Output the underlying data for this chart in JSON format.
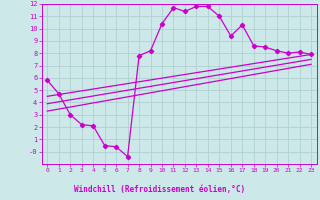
{
  "bg_color": "#cce8e8",
  "grid_color": "#b0d0d0",
  "line_color": "#cc00cc",
  "spine_color": "#cc00cc",
  "xlabel": "Windchill (Refroidissement éolien,°C)",
  "xlabel_bg": "#9900aa",
  "xlabel_fg": "#cc00cc",
  "xlim": [
    -0.5,
    23.5
  ],
  "ylim": [
    -1,
    12
  ],
  "xticks": [
    0,
    1,
    2,
    3,
    4,
    5,
    6,
    7,
    8,
    9,
    10,
    11,
    12,
    13,
    14,
    15,
    16,
    17,
    18,
    19,
    20,
    21,
    22,
    23
  ],
  "yticks": [
    0,
    1,
    2,
    3,
    4,
    5,
    6,
    7,
    8,
    9,
    10,
    11,
    12
  ],
  "ytick_labels": [
    "-0",
    "1",
    "2",
    "3",
    "4",
    "5",
    "6",
    "7",
    "8",
    "9",
    "10",
    "11",
    "12"
  ],
  "main_x": [
    0,
    1,
    2,
    3,
    4,
    5,
    6,
    7,
    8,
    9,
    10,
    11,
    12,
    13,
    14,
    15,
    16,
    17,
    18,
    19,
    20,
    21,
    22,
    23
  ],
  "main_y": [
    5.8,
    4.7,
    3.0,
    2.2,
    2.1,
    0.5,
    0.4,
    -0.4,
    7.8,
    8.2,
    10.4,
    11.7,
    11.4,
    11.8,
    11.8,
    11.0,
    9.4,
    10.3,
    8.6,
    8.5,
    8.2,
    8.0,
    8.1,
    7.9
  ],
  "line1_x": [
    0,
    23
  ],
  "line1_y": [
    4.5,
    7.9
  ],
  "line2_x": [
    0,
    23
  ],
  "line2_y": [
    3.9,
    7.5
  ],
  "line3_x": [
    0,
    23
  ],
  "line3_y": [
    3.3,
    7.1
  ]
}
